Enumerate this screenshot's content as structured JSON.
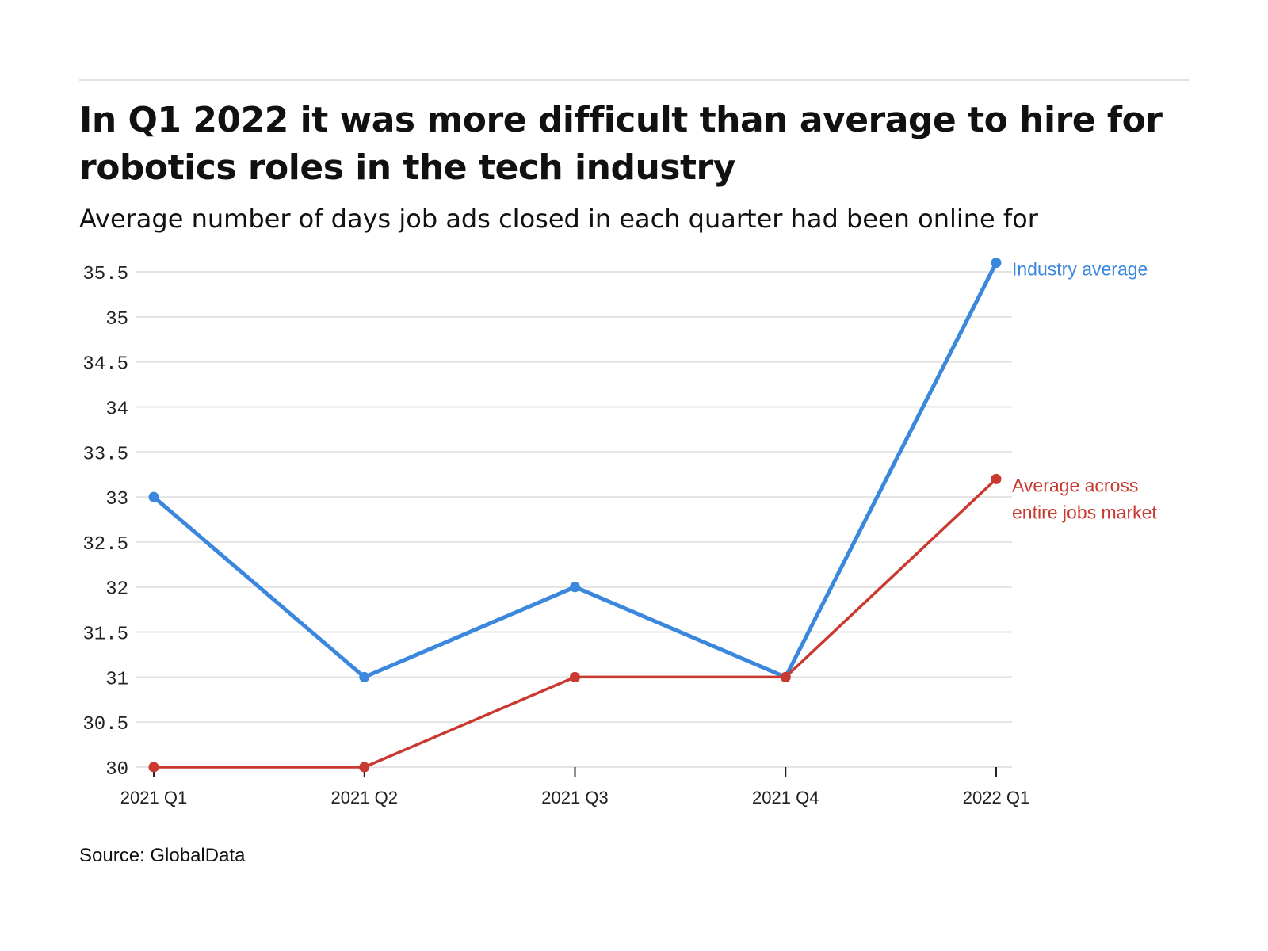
{
  "header": {
    "title": "In Q1 2022 it was more difficult than average to hire for robotics roles in the tech industry",
    "subtitle": "Average number of days job ads closed in each quarter had been online for"
  },
  "footer": {
    "source": "Source: GlobalData"
  },
  "chart_data": {
    "type": "line",
    "title": "In Q1 2022 it was more difficult than average to hire for robotics roles in the tech industry",
    "subtitle": "Average number of days job ads closed in each quarter had been online for",
    "xlabel": "",
    "ylabel": "",
    "categories": [
      "2021 Q1",
      "2021 Q2",
      "2021 Q3",
      "2021 Q4",
      "2022 Q1"
    ],
    "ylim": [
      30,
      35.5
    ],
    "yticks": [
      "30",
      "30.5",
      "31",
      "31.5",
      "32",
      "32.5",
      "33",
      "33.5",
      "34",
      "34.5",
      "35",
      "35.5"
    ],
    "grid": true,
    "legend": "inline-right",
    "series": [
      {
        "name": "Industry average",
        "label_lines": [
          "Industry average"
        ],
        "color": "#3a87dd",
        "values": [
          33,
          31,
          32,
          31,
          35.6
        ]
      },
      {
        "name": "Average across entire jobs market",
        "label_lines": [
          "Average across",
          "entire jobs market"
        ],
        "color": "#c9392f",
        "values": [
          30,
          30,
          31,
          31,
          33.2
        ]
      }
    ],
    "source": "Source: GlobalData"
  }
}
